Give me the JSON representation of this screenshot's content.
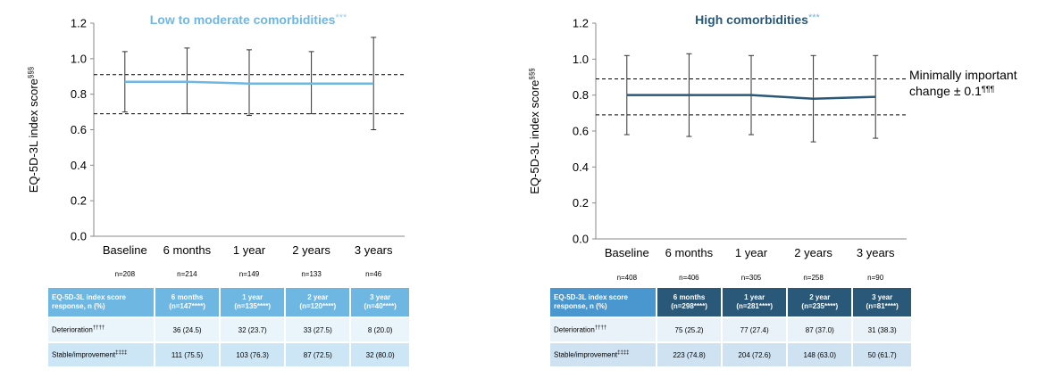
{
  "y_axis_label": "EQ-5D-3L index score",
  "y_axis_label_sup": "§§§",
  "mic_label_line1": "Minimally important",
  "mic_label_line2": "change ± 0.1",
  "mic_label_sup": "¶¶¶",
  "chart_data": [
    {
      "type": "line",
      "title": "Low to moderate comorbidities",
      "title_sup": "***",
      "categories": [
        "Baseline",
        "6 months",
        "1 year",
        "2 years",
        "3 years"
      ],
      "n_labels": [
        "n=208",
        "n=214",
        "n=149",
        "n=133",
        "n=46"
      ],
      "series": [
        {
          "values": [
            0.87,
            0.87,
            0.86,
            0.86,
            0.86
          ],
          "error_low": [
            0.7,
            0.69,
            0.68,
            0.69,
            0.6
          ],
          "error_high": [
            1.04,
            1.06,
            1.05,
            1.04,
            1.12
          ],
          "color": "#6fb7e3"
        }
      ],
      "ylim": [
        0.0,
        1.2
      ],
      "yticks": [
        "0.0",
        "0.2",
        "0.4",
        "0.6",
        "0.8",
        "1.0",
        "1.2"
      ],
      "reference_lines": [
        0.69,
        0.91
      ],
      "xlabel": ""
    },
    {
      "type": "line",
      "title": "High comorbidities",
      "title_sup": "***",
      "categories": [
        "Baseline",
        "6 months",
        "1 year",
        "2 years",
        "3 years"
      ],
      "n_labels": [
        "n=408",
        "n=406",
        "n=305",
        "n=258",
        "n=90"
      ],
      "series": [
        {
          "values": [
            0.8,
            0.8,
            0.8,
            0.78,
            0.79
          ],
          "error_low": [
            0.58,
            0.57,
            0.58,
            0.54,
            0.56
          ],
          "error_high": [
            1.02,
            1.03,
            1.02,
            1.02,
            1.02
          ],
          "color": "#2a5878"
        }
      ],
      "ylim": [
        0.0,
        1.2
      ],
      "yticks": [
        "0.0",
        "0.2",
        "0.4",
        "0.6",
        "0.8",
        "1.0",
        "1.2"
      ],
      "reference_lines": [
        0.69,
        0.89
      ],
      "xlabel": ""
    }
  ],
  "table_left": {
    "header_rh": "EQ-5D-3L index score response, n (%)",
    "cols": [
      {
        "l1": "6 months",
        "l2": "(n=147****)"
      },
      {
        "l1": "1 year",
        "l2": "(n=135****)"
      },
      {
        "l1": "2 year",
        "l2": "(n=120****)"
      },
      {
        "l1": "3 year",
        "l2": "(n=40****)"
      }
    ],
    "rows": [
      {
        "label": "Deterioration",
        "sup": "††††",
        "cells": [
          "36 (24.5)",
          "32 (23.7)",
          "33 (27.5)",
          "8 (20.0)"
        ]
      },
      {
        "label": "Stable/improvement",
        "sup": "‡‡‡‡",
        "cells": [
          "111 (75.5)",
          "103 (76.3)",
          "87 (72.5)",
          "32 (80.0)"
        ]
      }
    ]
  },
  "table_right": {
    "header_rh": "EQ-5D-3L index score response, n (%)",
    "cols": [
      {
        "l1": "6 months",
        "l2": "(n=298****)"
      },
      {
        "l1": "1 year",
        "l2": "(n=281****)"
      },
      {
        "l1": "2 year",
        "l2": "(n=235****)"
      },
      {
        "l1": "3 year",
        "l2": "(n=81****)"
      }
    ],
    "rows": [
      {
        "label": "Deterioration",
        "sup": "††††",
        "cells": [
          "75 (25.2)",
          "77 (27.4)",
          "87 (37.0)",
          "31 (38.3)"
        ]
      },
      {
        "label": "Stable/improvement",
        "sup": "‡‡‡‡",
        "cells": [
          "223 (74.8)",
          "204 (72.6)",
          "148 (63.0)",
          "50 (61.7)"
        ]
      }
    ]
  }
}
